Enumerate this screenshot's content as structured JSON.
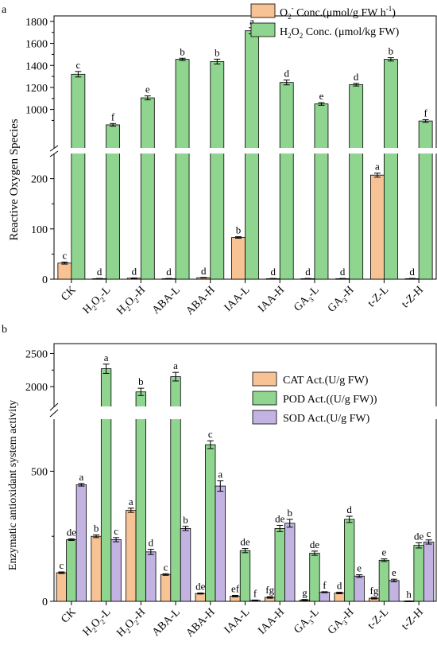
{
  "chart_data": [
    {
      "type": "bar",
      "panel_label": "a",
      "ylabel": "Reactive Oxygen Species",
      "y_axis": "broken",
      "lower_ylim": [
        0,
        250
      ],
      "lower_yticks": [
        "0",
        "100",
        "200"
      ],
      "upper_ylim": [
        650,
        1850
      ],
      "upper_yticks": [
        "1000",
        "1200",
        "1400",
        "1600",
        "1800"
      ],
      "categories": [
        "CK",
        "H2O2-L",
        "H2O2-H",
        "ABA-L",
        "ABA-H",
        "IAA-L",
        "IAA-H",
        "GA3-L",
        "GA3-H",
        "t-Z-L",
        "t-Z-H"
      ],
      "category_labels": [
        {
          "main": "CK"
        },
        {
          "main": "H",
          "sub": "2",
          "main2": "O",
          "sub2": "2",
          "suffix": "-L"
        },
        {
          "main": "H",
          "sub": "2",
          "main2": "O",
          "sub2": "2",
          "suffix": "-H"
        },
        {
          "main": "ABA-L"
        },
        {
          "main": "ABA-H"
        },
        {
          "main": "IAA-L"
        },
        {
          "main": "IAA-H"
        },
        {
          "main": "GA",
          "sub": "3",
          "suffix": "-L"
        },
        {
          "main": "GA",
          "sub": "3",
          "suffix": "-H"
        },
        {
          "main": "t-Z-L"
        },
        {
          "main": "t-Z-H"
        }
      ],
      "series": [
        {
          "name": "O2- Conc.(μmol/g FW h-1)",
          "legend": {
            "a": "O",
            "sub": "2",
            "sup": "-",
            "b": " Conc.(μmol/g FW h",
            "sup2": "-1",
            "c": ")"
          },
          "color": "#f7c294",
          "values": [
            32,
            1,
            2,
            1,
            3,
            83,
            1,
            1,
            1,
            207,
            1
          ],
          "errors": [
            2,
            0.5,
            0.5,
            0.5,
            0.5,
            1.5,
            0.5,
            0.5,
            0.5,
            4,
            0.5
          ],
          "letters": [
            "c",
            "d",
            "d",
            "d",
            "d",
            "b",
            "d",
            "d",
            "d",
            "a",
            "d"
          ]
        },
        {
          "name": "H2O2 Conc. (μmol/kg FW)",
          "legend": {
            "a": "H",
            "sub": "2",
            "a2": "O",
            "sub2": "2",
            "b": " Conc. (μmol/kg FW)"
          },
          "color": "#8fd48f",
          "values": [
            1320,
            860,
            1105,
            1455,
            1435,
            1715,
            1245,
            1050,
            1225,
            1455,
            895
          ],
          "errors": [
            25,
            12,
            18,
            10,
            22,
            28,
            22,
            12,
            12,
            15,
            12
          ],
          "letters": [
            "c",
            "f",
            "e",
            "b",
            "b",
            "a",
            "d",
            "e",
            "d",
            "b",
            "f"
          ]
        }
      ],
      "legend_position": "top-right"
    },
    {
      "type": "bar",
      "panel_label": "b",
      "ylabel": "Enzymatic antioxidant system activity",
      "y_axis": "broken",
      "lower_ylim": [
        0,
        700
      ],
      "lower_yticks": [
        "0",
        "500"
      ],
      "upper_ylim": [
        1700,
        2650
      ],
      "upper_yticks": [
        "2000",
        "2500"
      ],
      "categories": [
        "CK",
        "H2O2-L",
        "H2O2-H",
        "ABA-L",
        "ABA-H",
        "IAA-L",
        "IAA-H",
        "GA3-L",
        "GA3-H",
        "t-Z-L",
        "t-Z-H"
      ],
      "series": [
        {
          "name": "CAT Act.(U/g FW)",
          "color": "#f7c294",
          "values": [
            110,
            250,
            350,
            103,
            30,
            20,
            15,
            5,
            32,
            12,
            1
          ],
          "errors": [
            3,
            5,
            8,
            3,
            2,
            3,
            3,
            2,
            3,
            3,
            0.5
          ],
          "letters": [
            "c",
            "b",
            "a",
            "c",
            "de",
            "ef",
            "fg",
            "g",
            "d",
            "fg",
            "h"
          ]
        },
        {
          "name": "POD Act.((U/g FW))",
          "color": "#8fd48f",
          "values": [
            237,
            2270,
            1920,
            2150,
            602,
            195,
            280,
            185,
            315,
            158,
            215
          ],
          "errors": [
            3,
            70,
            55,
            65,
            15,
            8,
            12,
            8,
            12,
            5,
            10
          ],
          "letters": [
            "de",
            "a",
            "b",
            "a",
            "c",
            "de",
            "de",
            "de",
            "d",
            "e",
            "de"
          ]
        },
        {
          "name": "SOD Act.(U/g FW)",
          "color": "#c3b3e3",
          "values": [
            448,
            237,
            190,
            280,
            443,
            4,
            300,
            35,
            97,
            80,
            228
          ],
          "errors": [
            5,
            8,
            10,
            8,
            20,
            1,
            15,
            2,
            5,
            5,
            8
          ],
          "letters": [
            "a",
            "c",
            "d",
            "b",
            "a",
            "f",
            "b",
            "f",
            "e",
            "e",
            "c"
          ]
        }
      ],
      "legend_position": "top-right"
    }
  ]
}
